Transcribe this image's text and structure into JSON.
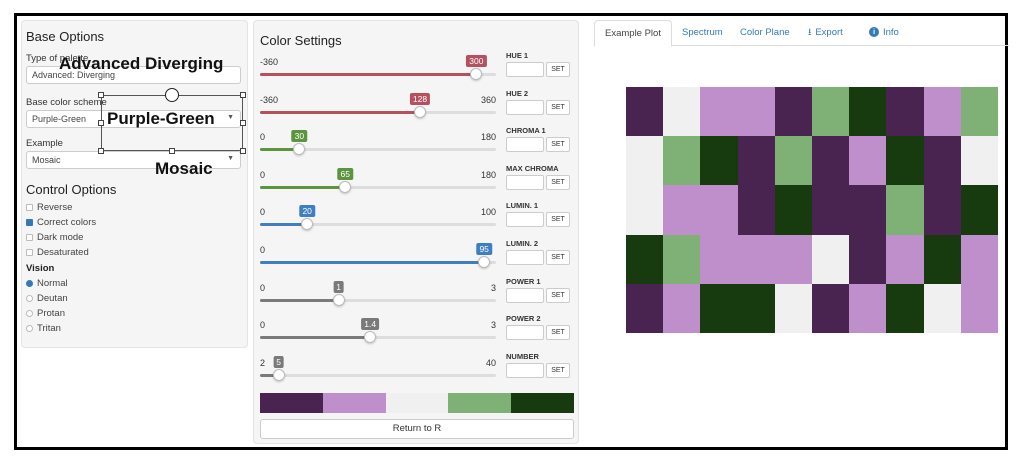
{
  "base_options": {
    "title": "Base Options",
    "palette_type_label": "Type of palette",
    "palette_type_value": "Advanced: Diverging",
    "base_color_label": "Base color scheme",
    "base_color_value": "Purple-Green",
    "example_label": "Example",
    "example_value": "Mosaic"
  },
  "annotations": {
    "palette_type": "Advanced Diverging",
    "base_color": "Purple-Green",
    "example": "Mosaic"
  },
  "control_options": {
    "title": "Control Options",
    "checkboxes": [
      {
        "label": "Reverse",
        "checked": false
      },
      {
        "label": "Correct colors",
        "checked": true
      },
      {
        "label": "Dark mode",
        "checked": false
      },
      {
        "label": "Desaturated",
        "checked": false
      }
    ],
    "vision_label": "Vision",
    "vision_options": [
      {
        "label": "Normal",
        "selected": true
      },
      {
        "label": "Deutan",
        "selected": false
      },
      {
        "label": "Protan",
        "selected": false
      },
      {
        "label": "Tritan",
        "selected": false
      }
    ]
  },
  "color_settings": {
    "title": "Color Settings",
    "sliders": [
      {
        "id": "hue1",
        "name": "HUE 1",
        "min": -360,
        "max": 360,
        "value": 300,
        "min_label": "-360",
        "max_label": "",
        "value_label": "300",
        "color": "#b5505f"
      },
      {
        "id": "hue2",
        "name": "HUE 2",
        "min": -360,
        "max": 360,
        "value": 128,
        "min_label": "-360",
        "max_label": "360",
        "value_label": "128",
        "color": "#b5505f"
      },
      {
        "id": "chroma1",
        "name": "CHROMA 1",
        "min": 0,
        "max": 180,
        "value": 30,
        "min_label": "0",
        "max_label": "180",
        "value_label": "30",
        "color": "#5c9440"
      },
      {
        "id": "maxchroma",
        "name": "MAX CHROMA",
        "min": 0,
        "max": 180,
        "value": 65,
        "min_label": "0",
        "max_label": "180",
        "value_label": "65",
        "color": "#5c9440"
      },
      {
        "id": "lumin1",
        "name": "LUMIN. 1",
        "min": 0,
        "max": 100,
        "value": 20,
        "min_label": "0",
        "max_label": "100",
        "value_label": "20",
        "color": "#3f7fc0"
      },
      {
        "id": "lumin2",
        "name": "LUMIN. 2",
        "min": 0,
        "max": 100,
        "value": 95,
        "min_label": "0",
        "max_label": "",
        "value_label": "95",
        "color": "#3f7fc0"
      },
      {
        "id": "power1",
        "name": "POWER 1",
        "min": 0,
        "max": 3,
        "value": 1,
        "min_label": "0",
        "max_label": "3",
        "value_label": "1",
        "color": "#7a7a7a"
      },
      {
        "id": "power2",
        "name": "POWER 2",
        "min": 0,
        "max": 3,
        "value": 1.4,
        "min_label": "0",
        "max_label": "3",
        "value_label": "1.4",
        "color": "#7a7a7a"
      },
      {
        "id": "number",
        "name": "NUMBER",
        "min": 2,
        "max": 40,
        "value": 5,
        "min_label": "2",
        "max_label": "40",
        "value_label": "5",
        "color": "#7a7a7a"
      }
    ],
    "set_label": "SET",
    "palette_colors": [
      "#4a2450",
      "#bf8fcc",
      "#f0f0f0",
      "#7fb075",
      "#173a0e"
    ],
    "return_button": "Return to R"
  },
  "tabs": [
    {
      "label": "Example Plot",
      "active": true,
      "icon": ""
    },
    {
      "label": "Spectrum",
      "active": false,
      "icon": ""
    },
    {
      "label": "Color Plane",
      "active": false,
      "icon": ""
    },
    {
      "label": "Export",
      "active": false,
      "icon": "download-icon"
    },
    {
      "label": "Info",
      "active": false,
      "icon": "info-icon"
    }
  ],
  "mosaic": {
    "colors": [
      "#4a2450",
      "#bf8fcc",
      "#f0f0f0",
      "#7fb075",
      "#173a0e"
    ],
    "rows": 5,
    "cols": 10,
    "grid": [
      [
        0,
        2,
        1,
        1,
        0,
        3,
        4,
        0,
        1,
        3
      ],
      [
        2,
        3,
        4,
        0,
        3,
        0,
        1,
        4,
        0,
        2
      ],
      [
        2,
        1,
        1,
        0,
        4,
        0,
        0,
        3,
        0,
        4
      ],
      [
        4,
        3,
        1,
        1,
        1,
        2,
        0,
        1,
        4,
        1
      ],
      [
        0,
        1,
        4,
        4,
        2,
        0,
        1,
        4,
        2,
        1
      ]
    ]
  }
}
